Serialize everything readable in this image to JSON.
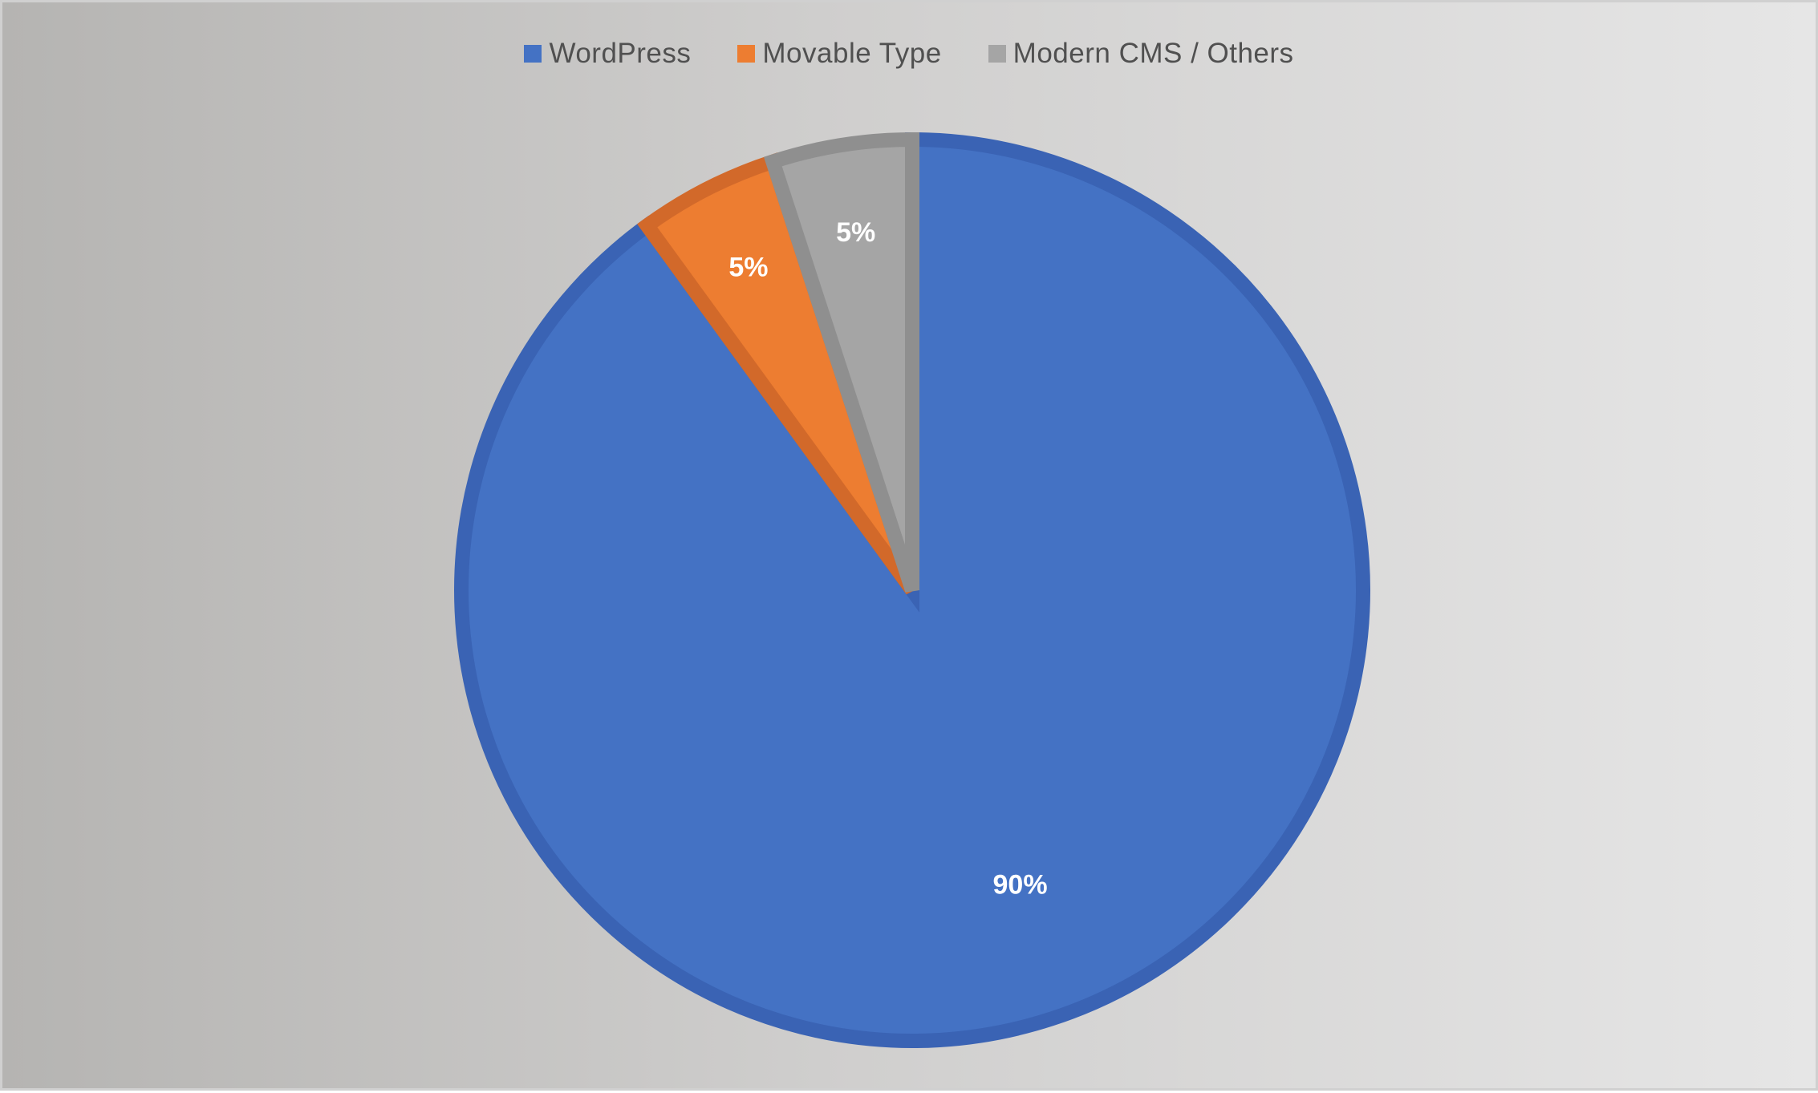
{
  "chart_data": {
    "type": "pie",
    "categories": [
      "WordPress",
      "Movable Type",
      "Modern CMS / Others"
    ],
    "values": [
      90,
      5,
      5
    ],
    "data_labels": [
      "90%",
      "5%",
      "5%"
    ],
    "colors": [
      "#4472C4",
      "#ED7D31",
      "#A5A5A5"
    ],
    "border_colors": [
      "#3A63B4",
      "#D2692A",
      "#8F8F8F"
    ],
    "start_angle_deg": 0,
    "direction": "clockwise",
    "legend_placement": "top",
    "background_gradient": [
      "#b5b4b2",
      "#e6e6e6"
    ]
  }
}
